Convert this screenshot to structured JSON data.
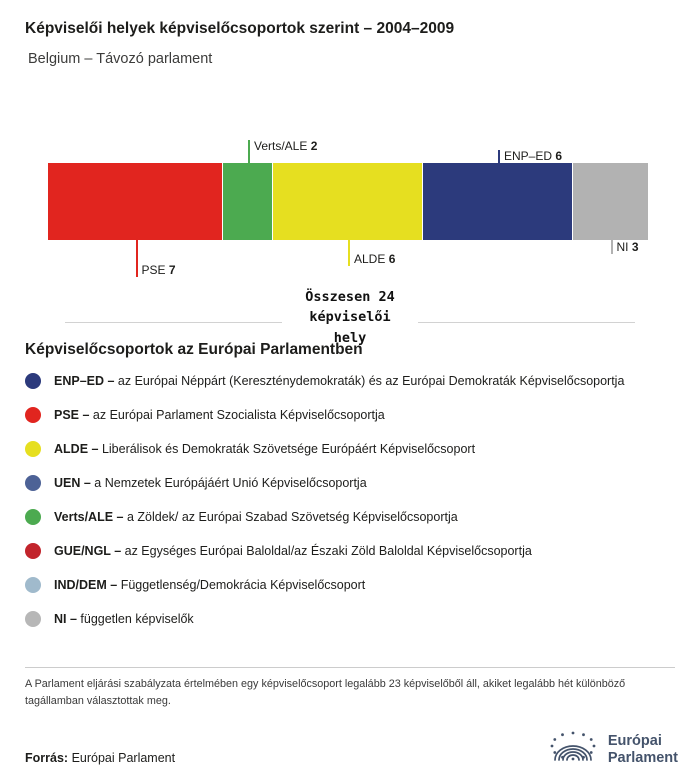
{
  "chart_data": {
    "type": "bar",
    "variant": "stacked-horizontal",
    "title": "Képviselői helyek képviselőcsoportok szerint – 2004–2009",
    "subtitle": "Belgium – Távozó parlament",
    "total_seats": 24,
    "total_label": "Összesen 24 képviselői hely",
    "total_label_lines": [
      "Összesen 24",
      "képviselői",
      "hely"
    ],
    "segments": [
      {
        "group": "PSE",
        "seats": 7,
        "color": "#e1251f",
        "label_position": "below",
        "tick_length": 37
      },
      {
        "group": "Verts/ALE",
        "seats": 2,
        "color": "#4caa50",
        "label_position": "above",
        "tick_length": 23
      },
      {
        "group": "ALDE",
        "seats": 6,
        "color": "#e6df20",
        "label_position": "below",
        "tick_length": 26
      },
      {
        "group": "ENP–ED",
        "seats": 6,
        "color": "#2c3a7c",
        "label_position": "above",
        "tick_length": 13
      },
      {
        "group": "NI",
        "seats": 3,
        "color": "#b2b2b2",
        "label_position": "below",
        "tick_length": 14
      }
    ]
  },
  "legend": {
    "title": "Képviselőcsoportok az Európai Parlamentben",
    "items": [
      {
        "abbr": "ENP–ED –",
        "desc": "az Európai Néppárt (Kereszténydemokraták) és az Európai Demokraták Képviselőcsoportja",
        "color": "#2c3a7c"
      },
      {
        "abbr": "PSE –",
        "desc": "az Európai Parlament Szocialista Képviselőcsoportja",
        "color": "#e1251f"
      },
      {
        "abbr": "ALDE –",
        "desc": "Liberálisok és Demokraták Szövetsége Európáért Képviselőcsoport",
        "color": "#e6df20"
      },
      {
        "abbr": "UEN –",
        "desc": "a Nemzetek Európájáért Unió Képviselőcsoportja",
        "color": "#4d6296"
      },
      {
        "abbr": "Verts/ALE –",
        "desc": "a Zöldek/ az Európai Szabad Szövetség Képviselőcsoportja",
        "color": "#4caa50"
      },
      {
        "abbr": "GUE/NGL –",
        "desc": "az Egységes Európai Baloldal/az Északi Zöld Baloldal Képviselőcsoportja",
        "color": "#c2242c"
      },
      {
        "abbr": "IND/DEM –",
        "desc": "Függetlenség/Demokrácia Képviselőcsoport",
        "color": "#a0bacc"
      },
      {
        "abbr": "NI –",
        "desc": "független képviselők",
        "color": "#b7b7b7"
      }
    ]
  },
  "footnote": {
    "text": "A Parlament eljárási szabályzata értelmében egy képviselőcsoport legalább 23 képviselőből áll, akiket legalább hét különböző tagállamban választottak meg."
  },
  "source": {
    "label": "Forrás:",
    "value": "Európai Parlament"
  },
  "logo": {
    "line1": "Európai",
    "line2": "Parlament"
  }
}
